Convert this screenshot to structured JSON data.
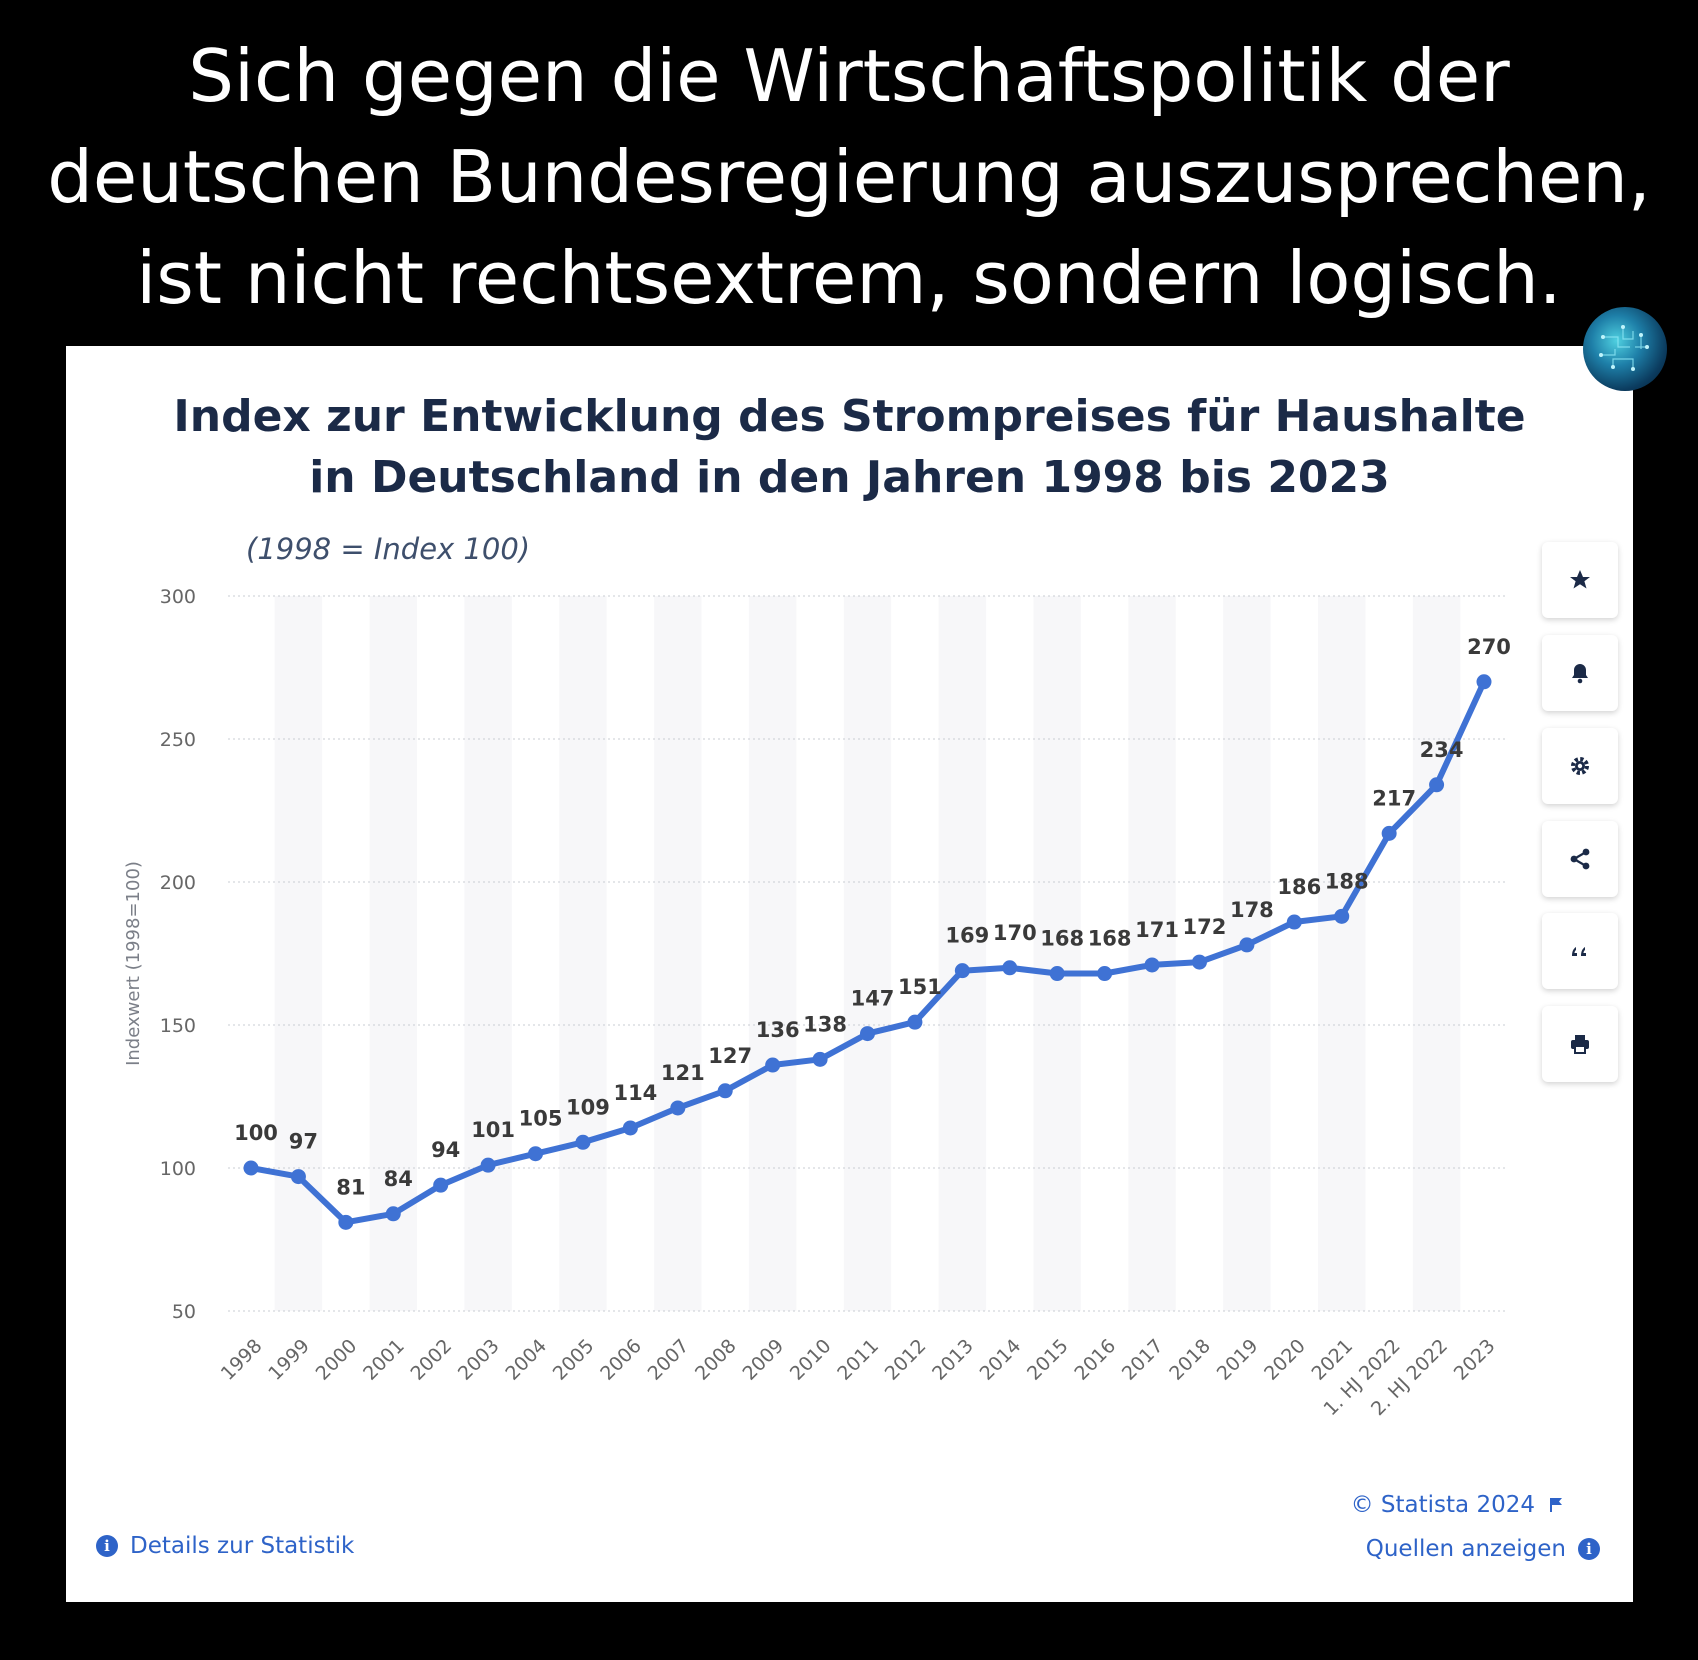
{
  "caption": {
    "lines": [
      "Sich gegen die Wirtschaftspolitik der",
      "deutschen Bundesregierung auszusprechen,",
      "ist nicht rechtsextrem, sondern logisch."
    ]
  },
  "chart_data": {
    "type": "line",
    "title_lines": [
      "Index zur Entwicklung des Strompreises für Haushalte",
      "in Deutschland in den Jahren 1998 bis 2023"
    ],
    "subtitle": "(1998 = Index 100)",
    "ylabel": "Indexwert (1998=100)",
    "xlabel": "",
    "ylim": [
      50,
      300
    ],
    "yticks": [
      50,
      100,
      150,
      200,
      250,
      300
    ],
    "grid": true,
    "categories": [
      "1998",
      "1999",
      "2000",
      "2001",
      "2002",
      "2003",
      "2004",
      "2005",
      "2006",
      "2007",
      "2008",
      "2009",
      "2010",
      "2011",
      "2012",
      "2013",
      "2014",
      "2015",
      "2016",
      "2017",
      "2018",
      "2019",
      "2020",
      "2021",
      "1. HJ 2022",
      "2. HJ 2022",
      "2023"
    ],
    "values": [
      100,
      97,
      81,
      84,
      94,
      101,
      105,
      109,
      114,
      121,
      127,
      136,
      138,
      147,
      151,
      169,
      170,
      168,
      168,
      171,
      172,
      178,
      186,
      188,
      217,
      234,
      270
    ],
    "color": "#3f72d4"
  },
  "toolbar": {
    "icons": [
      "star-icon",
      "bell-icon",
      "gear-icon",
      "share-icon",
      "quote-icon",
      "print-icon"
    ]
  },
  "footer": {
    "copyright": "© Statista 2024",
    "details": "Details zur Statistik",
    "sources": "Quellen anzeigen"
  }
}
